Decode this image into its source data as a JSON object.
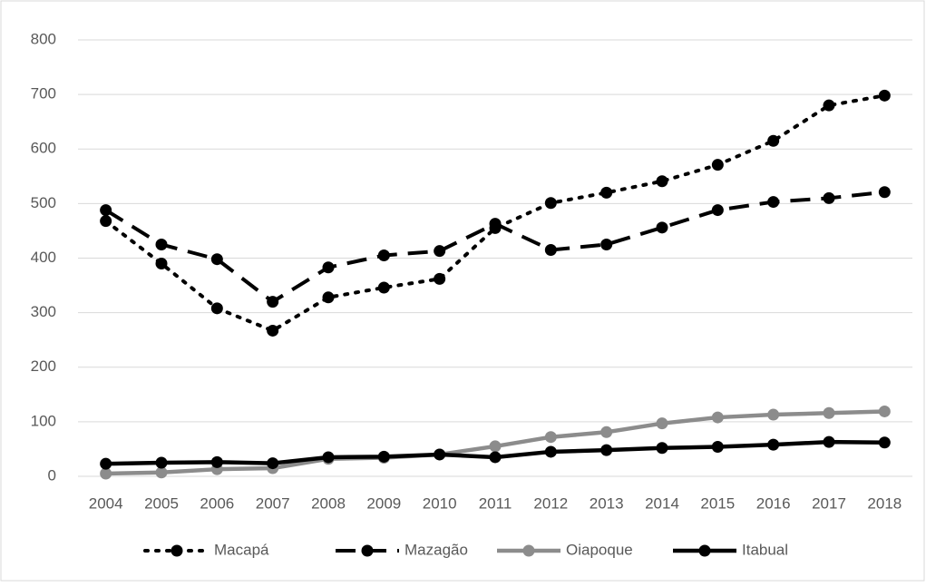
{
  "chart_data": {
    "type": "line",
    "categories": [
      "2004",
      "2005",
      "2006",
      "2007",
      "2008",
      "2009",
      "2010",
      "2011",
      "2012",
      "2013",
      "2014",
      "2015",
      "2016",
      "2017",
      "2018"
    ],
    "ylim": [
      0,
      800
    ],
    "yticks": [
      0,
      100,
      200,
      300,
      400,
      500,
      600,
      700,
      800
    ],
    "grid": true,
    "legend": "bottom",
    "series": [
      {
        "name": "Macapá",
        "color": "#000000",
        "line_style": "dotted",
        "values": [
          468,
          390,
          308,
          267,
          328,
          346,
          362,
          455,
          501,
          520,
          541,
          571,
          615,
          680,
          698
        ]
      },
      {
        "name": "Mazagão",
        "color": "#000000",
        "line_style": "dashed",
        "values": [
          488,
          425,
          398,
          320,
          383,
          405,
          413,
          463,
          415,
          425,
          456,
          488,
          503,
          510,
          521
        ]
      },
      {
        "name": "Oiapoque",
        "color": "#8c8c8c",
        "line_style": "solid",
        "values": [
          5,
          7,
          13,
          15,
          32,
          34,
          40,
          55,
          72,
          81,
          97,
          108,
          113,
          116,
          119
        ]
      },
      {
        "name": "Itabual",
        "color": "#000000",
        "line_style": "solid",
        "values": [
          23,
          25,
          26,
          24,
          35,
          36,
          40,
          35,
          45,
          48,
          52,
          54,
          58,
          63,
          62
        ]
      }
    ]
  }
}
